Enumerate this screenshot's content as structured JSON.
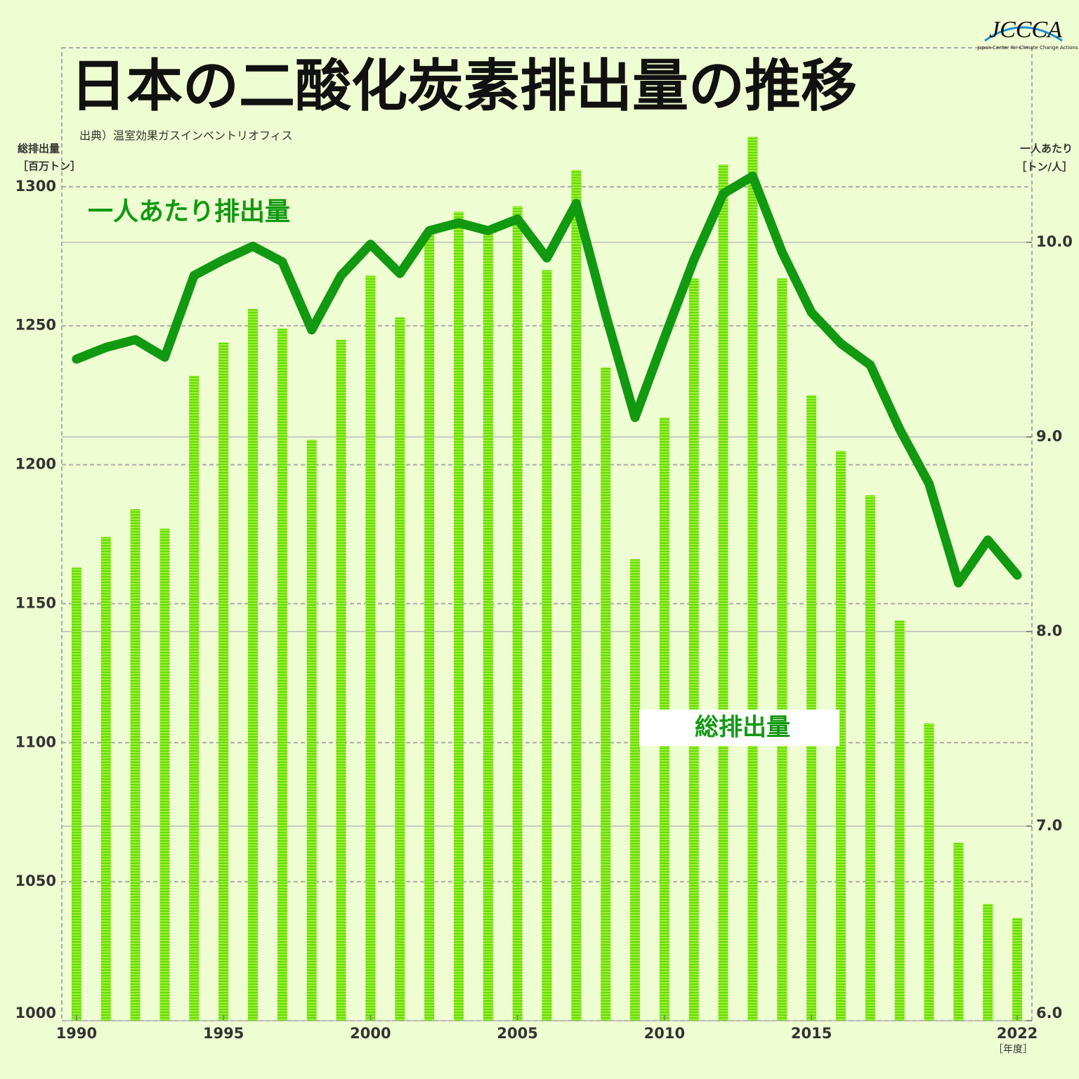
{
  "logo": {
    "text": "JCCCA",
    "subtitle": "Japan Center for Climate Change Actions"
  },
  "chart_data": {
    "type": "combo",
    "title": "日本の二酸化炭素排出量の推移",
    "source": "出典）温室効果ガスインベントリオフィス",
    "y_label": "総排出量",
    "y_unit": "［百万トン］",
    "y2_label": "一人あたり",
    "y2_unit": "［トン/人］",
    "x_unit": "［年度］",
    "x": [
      1990,
      1991,
      1992,
      1993,
      1994,
      1995,
      1996,
      1997,
      1998,
      1999,
      2000,
      2001,
      2002,
      2003,
      2004,
      2005,
      2006,
      2007,
      2008,
      2009,
      2010,
      2011,
      2012,
      2013,
      2014,
      2015,
      2016,
      2017,
      2018,
      2019,
      2020,
      2021,
      2022
    ],
    "xlim": [
      1989.5,
      2022.5
    ],
    "xticks": [
      1990,
      1995,
      2000,
      2005,
      2010,
      2015,
      2022
    ],
    "ylim": [
      1000,
      1350
    ],
    "yticks": [
      1000,
      1050,
      1100,
      1150,
      1200,
      1250,
      1300
    ],
    "y2lim": [
      6,
      11
    ],
    "y2ticks": [
      {
        "value": 6,
        "label": "6.0"
      },
      {
        "value": 7,
        "label": "7.0"
      },
      {
        "value": 8,
        "label": "8.0"
      },
      {
        "value": 9,
        "label": "9.0"
      },
      {
        "value": 10,
        "label": "10.0"
      }
    ],
    "grid": true,
    "series": [
      {
        "name": "総排出量",
        "type": "bar",
        "color": "#66dd00",
        "values": [
          1163,
          1174,
          1184,
          1177,
          1232,
          1244,
          1256,
          1249,
          1209,
          1245,
          1268,
          1253,
          1283,
          1291,
          1283,
          1293,
          1270,
          1306,
          1235,
          1166,
          1217,
          1267,
          1308,
          1318,
          1267,
          1225,
          1205,
          1189,
          1144,
          1107,
          1064,
          1042,
          1037
        ]
      },
      {
        "name": "一人あたり排出量",
        "type": "line",
        "axis": "y2",
        "color": "#119911",
        "values": [
          9.4,
          9.46,
          9.5,
          9.41,
          9.83,
          9.91,
          9.98,
          9.9,
          9.55,
          9.83,
          9.99,
          9.84,
          10.06,
          10.1,
          10.06,
          10.12,
          9.92,
          10.2,
          9.63,
          9.1,
          9.51,
          9.91,
          10.25,
          10.34,
          9.95,
          9.64,
          9.48,
          9.37,
          9.04,
          8.76,
          8.25,
          8.47,
          8.29
        ]
      }
    ]
  }
}
